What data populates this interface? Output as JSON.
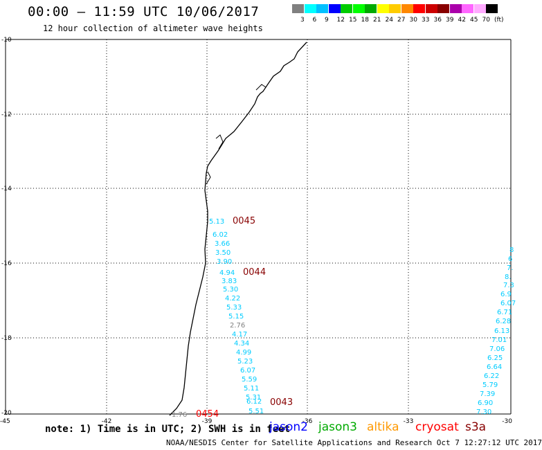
{
  "header": {
    "title": "00:00 – 11:59 UTC 10/06/2017",
    "subtitle": "12 hour collection of altimeter wave heights"
  },
  "colorbar": {
    "colors": [
      "#808080",
      "#00ffff",
      "#00c0ff",
      "#0000ff",
      "#00cc00",
      "#00ff00",
      "#00aa00",
      "#ffff00",
      "#ffcc00",
      "#ff8800",
      "#ff0000",
      "#cc0000",
      "#880000",
      "#aa00aa",
      "#ff66ff",
      "#ffaaff",
      "#000000"
    ],
    "labels": [
      "3",
      "6",
      "9",
      "12",
      "15",
      "18",
      "21",
      "24",
      "27",
      "30",
      "33",
      "36",
      "39",
      "42",
      "45",
      "70",
      "(ft)"
    ]
  },
  "axes": {
    "lat_labels": [
      "-10",
      "-12",
      "-14",
      "-16",
      "-18",
      "-20"
    ],
    "lon_labels": [
      "-45",
      "-42",
      "-39",
      "-36",
      "-33",
      "-30"
    ]
  },
  "map": {
    "track_a": [
      {
        "v": "5.13",
        "c": "#00ccff"
      },
      {
        "v": "6.02",
        "c": "#00ccff"
      },
      {
        "v": "3.66",
        "c": "#00ccff"
      },
      {
        "v": "3.50",
        "c": "#00ccff"
      },
      {
        "v": "3.90",
        "c": "#00ccff"
      },
      {
        "v": "4.94",
        "c": "#00ccff"
      },
      {
        "v": "3.83",
        "c": "#00ccff"
      },
      {
        "v": "5.30",
        "c": "#00ccff"
      },
      {
        "v": "4.22",
        "c": "#00ccff"
      },
      {
        "v": "5.33",
        "c": "#00ccff"
      },
      {
        "v": "5.15",
        "c": "#00ccff"
      },
      {
        "v": "2.76",
        "c": "#808080"
      },
      {
        "v": "4.17",
        "c": "#00ccff"
      },
      {
        "v": "4.34",
        "c": "#00ccff"
      },
      {
        "v": "4.99",
        "c": "#00ccff"
      },
      {
        "v": "5.23",
        "c": "#00ccff"
      },
      {
        "v": "6.07",
        "c": "#00ccff"
      },
      {
        "v": "5.59",
        "c": "#00ccff"
      },
      {
        "v": "5.11",
        "c": "#00ccff"
      },
      {
        "v": "5.31",
        "c": "#00ccff"
      },
      {
        "v": "6.12",
        "c": "#00ccff"
      },
      {
        "v": "5.51",
        "c": "#00ccff"
      }
    ],
    "track_b": [
      {
        "v": "8",
        "c": "#00ccff"
      },
      {
        "v": "6",
        "c": "#00ccff"
      },
      {
        "v": "7.",
        "c": "#00ccff"
      },
      {
        "v": "8.",
        "c": "#00ccff"
      },
      {
        "v": "7.3",
        "c": "#00ccff"
      },
      {
        "v": "6.9",
        "c": "#00ccff"
      },
      {
        "v": "6.07",
        "c": "#00ccff"
      },
      {
        "v": "6.71",
        "c": "#00ccff"
      },
      {
        "v": "6.28",
        "c": "#00ccff"
      },
      {
        "v": "6.13",
        "c": "#00ccff"
      },
      {
        "v": "7.01",
        "c": "#00ccff"
      },
      {
        "v": "7.06",
        "c": "#00ccff"
      },
      {
        "v": "6.25",
        "c": "#00ccff"
      },
      {
        "v": "6.64",
        "c": "#00ccff"
      },
      {
        "v": "6.22",
        "c": "#00ccff"
      },
      {
        "v": "5.79",
        "c": "#00ccff"
      },
      {
        "v": "7.39",
        "c": "#00ccff"
      },
      {
        "v": "6.90",
        "c": "#00ccff"
      },
      {
        "v": "7.30",
        "c": "#00ccff"
      }
    ],
    "extra_value": {
      "v": "1.76",
      "c": "#808080"
    },
    "time_labels": [
      {
        "t": "0045",
        "c": "#880000"
      },
      {
        "t": "0044",
        "c": "#880000"
      },
      {
        "t": "0043",
        "c": "#880000"
      },
      {
        "t": "0454",
        "c": "#ff0000"
      }
    ]
  },
  "footer": {
    "note": "note: 1) Time is in UTC; 2) SWH is in feet",
    "satellites": [
      {
        "name": "jason2",
        "color": "#0000ff"
      },
      {
        "name": "jason3",
        "color": "#00aa00"
      },
      {
        "name": "altika",
        "color": "#ff9900"
      },
      {
        "name": "cryosat",
        "color": "#ff0000"
      },
      {
        "name": "s3a",
        "color": "#880000"
      }
    ],
    "credit": "NOAA/NESDIS Center for Satellite Applications and Research   Oct  7 12:27:12 UTC 2017"
  }
}
